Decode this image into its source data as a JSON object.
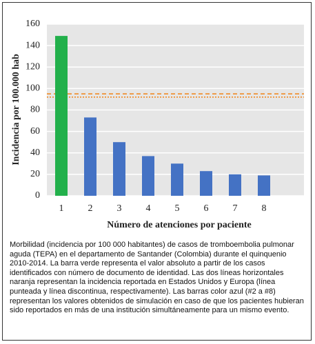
{
  "chart_data": {
    "type": "bar",
    "ylabel": "Incidencia por 100.000 hab",
    "xlabel": "Número de atenciones por paciente",
    "categories": [
      "1",
      "2",
      "3",
      "4",
      "5",
      "6",
      "7",
      "8"
    ],
    "values": [
      149,
      73,
      50,
      37,
      30,
      23,
      20,
      19
    ],
    "colors": [
      "#22b04b",
      "#4472c4",
      "#4472c4",
      "#4472c4",
      "#4472c4",
      "#4472c4",
      "#4472c4",
      "#4472c4"
    ],
    "ylim": [
      0,
      160
    ],
    "yticks": [
      0,
      20,
      40,
      60,
      80,
      100,
      120,
      140,
      160
    ],
    "grid": true,
    "reference_lines": [
      {
        "value": 95,
        "style": "dashed",
        "color": "#f08a24"
      },
      {
        "value": 92,
        "style": "dotted",
        "color": "#f08a24"
      }
    ]
  },
  "caption": "Morbilidad (incidencia por 100 000 habitantes) de casos de tromboembolia pulmonar aguda (TEPA) en el departamento de Santander (Colombia) durante el quinquenio 2010-2014. La barra verde representa el valor absoluto a partir de los casos identificados con número de documento de identidad. Las dos líneas horizontales naranja representan la incidencia reportada en Estados Unidos y Europa (línea punteada y línea discontinua, respectivamente). Las barras color azul (#2 a #8) representan los valores obtenidos de simulación en caso de que los pacientes hubieran sido reportados en más de una institución simultáneamente para un mismo evento."
}
